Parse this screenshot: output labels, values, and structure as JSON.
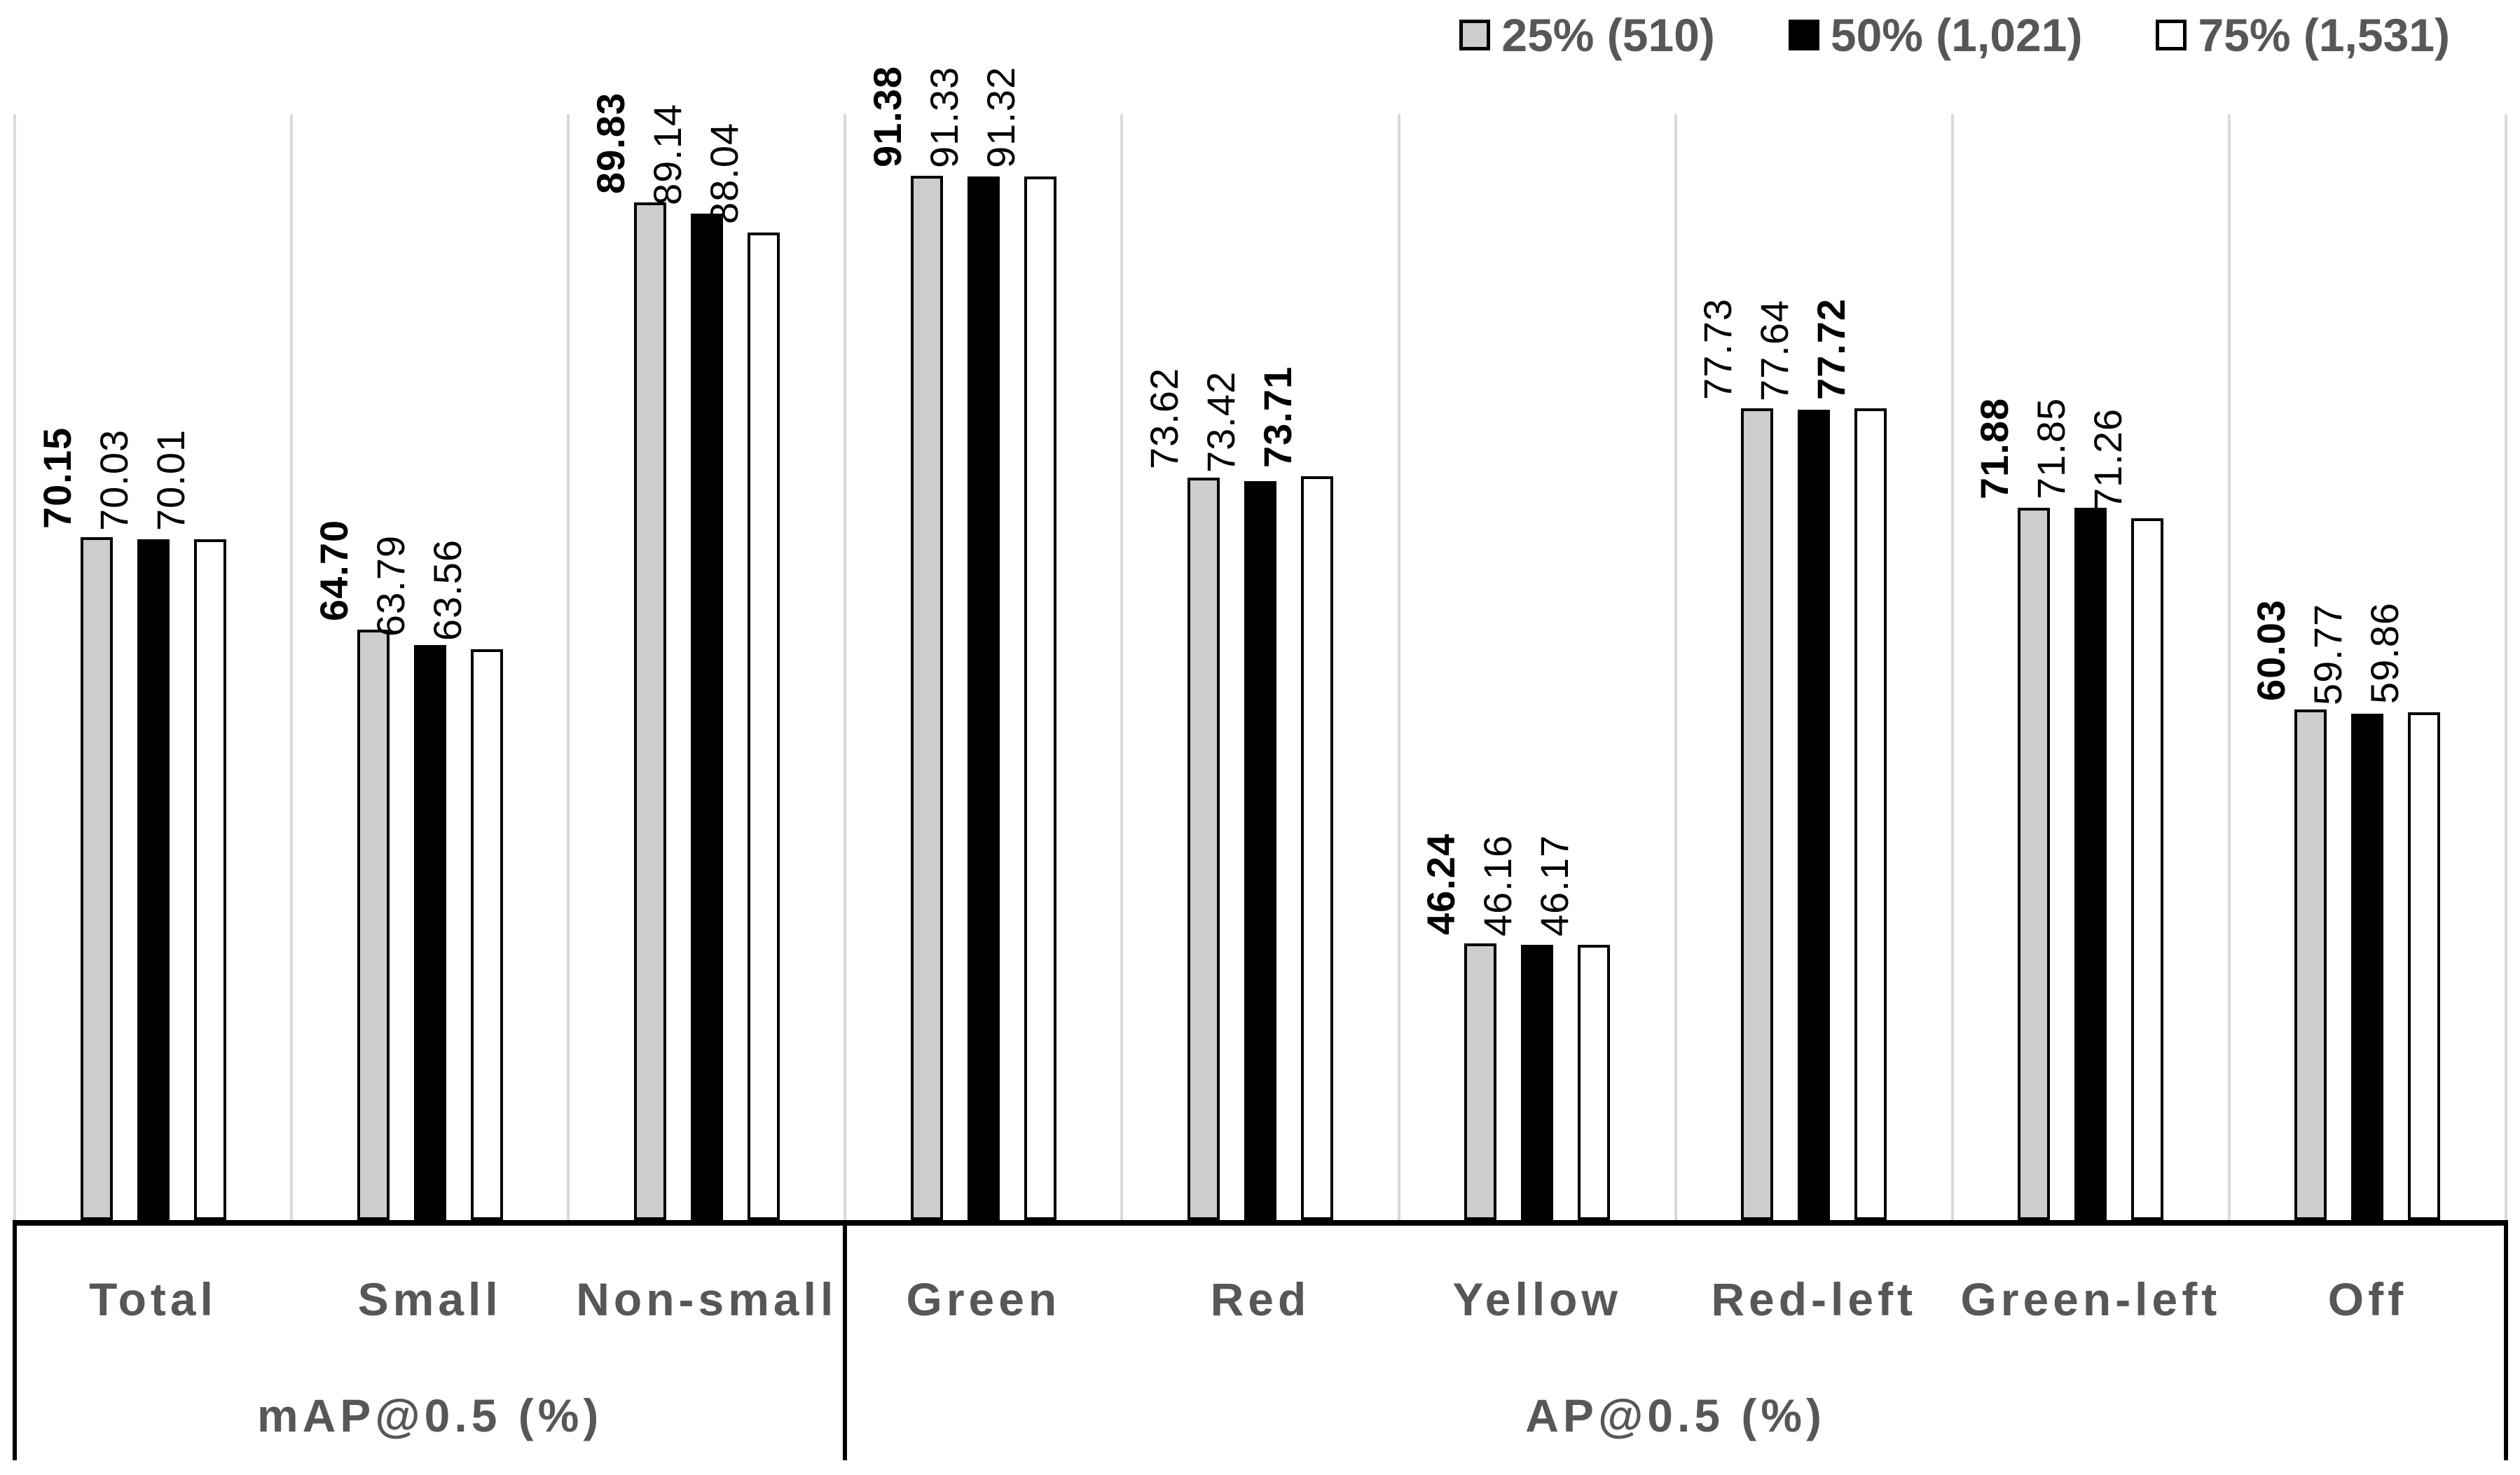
{
  "page": {
    "background": "#ffffff"
  },
  "legend": {
    "position": "top-right",
    "items": [
      {
        "label": "25% (510)",
        "swatch_color": "#cdcdcd"
      },
      {
        "label": "50% (1,021)",
        "swatch_color": "#000000"
      },
      {
        "label": "75% (1,531)",
        "swatch_color": "#ffffff"
      }
    ]
  },
  "axis_groups": [
    {
      "label": "mAP@0.5 (%)",
      "categories": [
        "Total",
        "Small",
        "Non-small"
      ]
    },
    {
      "label": "AP@0.5 (%)",
      "categories": [
        "Green",
        "Red",
        "Yellow",
        "Red-left",
        "Green-left",
        "Off"
      ]
    }
  ],
  "chart_data": {
    "type": "bar",
    "title": "",
    "categories": [
      "Total",
      "Small",
      "Non-small",
      "Green",
      "Red",
      "Yellow",
      "Red-left",
      "Green-left",
      "Off"
    ],
    "category_sections": [
      "mAP@0.5 (%)",
      "mAP@0.5 (%)",
      "mAP@0.5 (%)",
      "AP@0.5 (%)",
      "AP@0.5 (%)",
      "AP@0.5 (%)",
      "AP@0.5 (%)",
      "AP@0.5 (%)",
      "AP@0.5 (%)"
    ],
    "series": [
      {
        "name": "25% (510)",
        "fill": "#cdcdcd",
        "values": [
          70.15,
          64.7,
          89.83,
          91.38,
          73.62,
          46.24,
          77.73,
          71.88,
          60.03
        ],
        "bold_labels": [
          true,
          true,
          true,
          true,
          false,
          true,
          false,
          true,
          true
        ]
      },
      {
        "name": "50% (1,021)",
        "fill": "#000000",
        "values": [
          70.03,
          63.79,
          89.14,
          91.33,
          73.42,
          46.16,
          77.64,
          71.85,
          59.77
        ],
        "bold_labels": [
          false,
          false,
          false,
          false,
          false,
          false,
          false,
          false,
          false
        ]
      },
      {
        "name": "75% (1,531)",
        "fill": "#ffffff",
        "values": [
          70.01,
          63.56,
          88.04,
          91.32,
          73.71,
          46.17,
          77.72,
          71.26,
          59.86
        ],
        "bold_labels": [
          false,
          false,
          false,
          false,
          true,
          false,
          true,
          false,
          false
        ]
      }
    ],
    "value_label_format": "2dp",
    "value_label_rotation": -90,
    "ylim": [
      30,
      95
    ],
    "grid": "vertical-category-separators",
    "legend_position": "top-right",
    "colors": {
      "grid": "#d9d9d9",
      "bar_border": "#000000",
      "value_text": "#000000",
      "label_text": "#575757"
    }
  }
}
